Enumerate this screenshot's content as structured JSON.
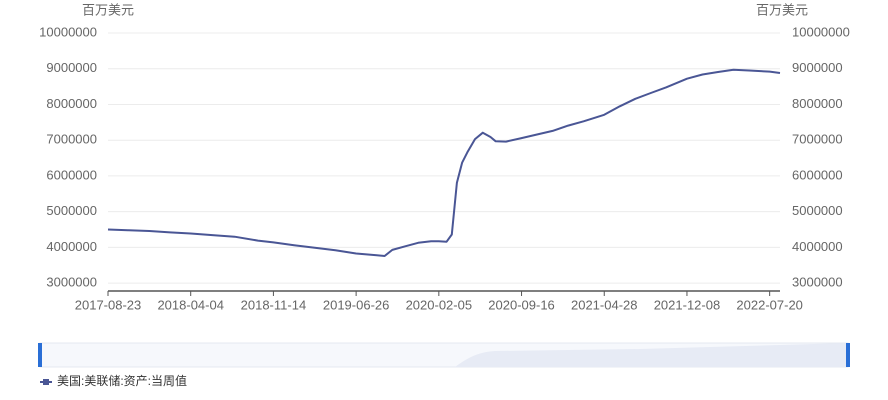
{
  "chart_data": {
    "type": "line",
    "y_label": "百万美元",
    "y2_label": "百万美元",
    "x": [
      "2017-08-23",
      "2017-10-18",
      "2017-12-13",
      "2018-02-07",
      "2018-04-04",
      "2018-06-06",
      "2018-08-01",
      "2018-10-03",
      "2018-11-14",
      "2019-01-09",
      "2019-03-06",
      "2019-05-01",
      "2019-06-26",
      "2019-08-21",
      "2019-09-11",
      "2019-10-02",
      "2019-11-06",
      "2019-12-11",
      "2020-01-15",
      "2020-02-05",
      "2020-02-26",
      "2020-03-11",
      "2020-03-25",
      "2020-04-08",
      "2020-04-22",
      "2020-05-13",
      "2020-06-03",
      "2020-06-24",
      "2020-07-08",
      "2020-08-05",
      "2020-09-16",
      "2020-10-28",
      "2020-12-09",
      "2021-01-20",
      "2021-03-03",
      "2021-04-28",
      "2021-06-09",
      "2021-07-21",
      "2021-09-01",
      "2021-10-13",
      "2021-12-08",
      "2022-01-19",
      "2022-03-02",
      "2022-04-13",
      "2022-05-25",
      "2022-07-20",
      "2022-08-17"
    ],
    "series": [
      {
        "name": "美国:美联储:资产:当周值",
        "color": "#4a5695",
        "values": [
          4500000,
          4480000,
          4460000,
          4420000,
          4390000,
          4340000,
          4300000,
          4190000,
          4140000,
          4060000,
          3990000,
          3920000,
          3830000,
          3780000,
          3760000,
          3930000,
          4030000,
          4130000,
          4170000,
          4170000,
          4160000,
          4360000,
          5810000,
          6370000,
          6660000,
          7030000,
          7210000,
          7090000,
          6970000,
          6960000,
          7060000,
          7160000,
          7260000,
          7410000,
          7530000,
          7710000,
          7950000,
          8160000,
          8320000,
          8480000,
          8720000,
          8840000,
          8910000,
          8970000,
          8950000,
          8920000,
          8880000
        ]
      }
    ],
    "xlim": [
      "2017-08-23",
      "2022-08-17"
    ],
    "xticks": [
      "2017-08-23",
      "2018-04-04",
      "2018-11-14",
      "2019-06-26",
      "2020-02-05",
      "2020-09-16",
      "2021-04-28",
      "2021-12-08",
      "2022-07-20"
    ],
    "ylim": [
      2780000,
      10000000
    ],
    "yticks": [
      3000000,
      4000000,
      5000000,
      6000000,
      7000000,
      8000000,
      9000000,
      10000000
    ],
    "y2lim": [
      2780000,
      10000000
    ],
    "y2ticks": [
      3000000,
      4000000,
      5000000,
      6000000,
      7000000,
      8000000,
      9000000,
      10000000
    ],
    "grid": true
  }
}
